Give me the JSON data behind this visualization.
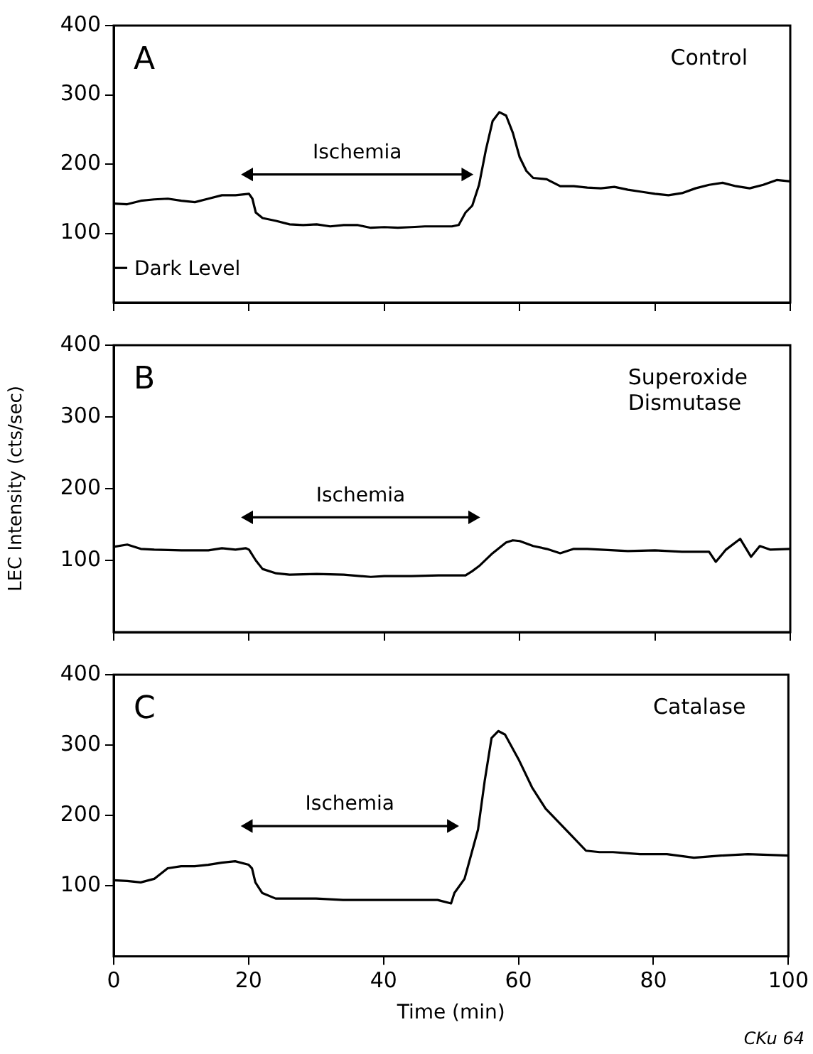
{
  "chart_data": [
    {
      "type": "line",
      "title": "A",
      "subtitle": "Control",
      "tick_labels": "y",
      "series": [
        {
          "color": "#000000",
          "x": [
            0,
            2,
            4,
            6,
            8,
            10,
            12,
            14,
            16,
            18,
            20,
            20.5,
            21,
            22,
            24,
            26,
            28,
            30,
            32,
            34,
            36,
            38,
            40,
            42,
            44,
            46,
            48,
            50,
            51,
            52,
            53,
            54,
            55,
            56,
            57,
            58,
            59,
            60,
            61,
            62,
            64,
            66,
            68,
            70,
            72,
            74,
            76,
            78,
            80,
            82,
            84,
            86,
            88,
            90,
            92,
            94,
            96,
            98,
            100
          ],
          "values": [
            143,
            142,
            147,
            149,
            150,
            147,
            145,
            150,
            155,
            155,
            157,
            150,
            130,
            122,
            118,
            113,
            112,
            113,
            110,
            112,
            112,
            108,
            109,
            108,
            109,
            110,
            110,
            110,
            112,
            130,
            140,
            170,
            220,
            262,
            275,
            270,
            245,
            210,
            190,
            180,
            178,
            168,
            168,
            166,
            165,
            167,
            163,
            160,
            157,
            155,
            158,
            165,
            170,
            173,
            168,
            165,
            170,
            177,
            175
          ]
        },
        {
          "type": "line",
          "color": "#000000",
          "marker": "triangle",
          "x": [
            20,
            52
          ],
          "values": [
            185,
            185
          ]
        },
        {
          "type": "line",
          "color": "#000000",
          "x": [
            0,
            2
          ],
          "values": [
            50,
            50
          ]
        }
      ],
      "xlim": [
        0,
        100
      ],
      "xticks": [
        0,
        20,
        40,
        60,
        80,
        100
      ],
      "ylim": [
        0,
        400
      ],
      "yticks": [
        100,
        200,
        300,
        400
      ],
      "annotations": [
        {
          "text": "Ischemia",
          "x": 36,
          "y": 185
        },
        {
          "text": "Dark Level",
          "x": 2,
          "y": 50
        }
      ]
    },
    {
      "type": "line",
      "title": "B",
      "subtitle": "Superoxide Dismutase",
      "ylabel": "LEC Intensity (cts/sec)",
      "tick_labels": "y",
      "series": [
        {
          "color": "#000000",
          "x": [
            0,
            2,
            4,
            6,
            10,
            14,
            16,
            18,
            19.5,
            20,
            21,
            22,
            24,
            26,
            30,
            34,
            38,
            40,
            44,
            48,
            52,
            53,
            54,
            56,
            58,
            59,
            60,
            62,
            64,
            66,
            68,
            70,
            72,
            76,
            80,
            84,
            88,
            89,
            90.5,
            92.6,
            94.2,
            95.5,
            97,
            100
          ],
          "values": [
            119,
            122,
            116,
            115,
            114,
            114,
            117,
            115,
            117,
            115,
            100,
            88,
            82,
            80,
            81,
            80,
            77,
            78,
            78,
            79,
            79,
            85,
            92,
            110,
            125,
            128,
            127,
            120,
            116,
            110,
            116,
            116,
            115,
            113,
            114,
            112,
            112,
            98,
            115,
            130,
            105,
            120,
            115,
            116
          ]
        },
        {
          "type": "line",
          "color": "#000000",
          "marker": "triangle",
          "x": [
            20,
            53
          ],
          "values": [
            160,
            160
          ]
        }
      ],
      "xlim": [
        0,
        100
      ],
      "xticks": [
        0,
        20,
        40,
        60,
        80,
        100
      ],
      "ylim": [
        0,
        400
      ],
      "yticks": [
        100,
        200,
        300,
        400
      ],
      "annotations": [
        {
          "text": "Ischemia",
          "x": 36.5,
          "y": 160
        }
      ]
    },
    {
      "type": "line",
      "title": "C",
      "subtitle": "Catalase",
      "xlabel": "Time (min)",
      "series": [
        {
          "color": "#000000",
          "x": [
            0,
            2,
            4,
            6,
            8,
            10,
            12,
            14,
            16,
            18,
            20,
            20.5,
            21,
            22,
            24,
            26,
            30,
            34,
            38,
            40,
            44,
            48,
            50,
            50.5,
            52,
            54,
            55,
            56,
            57,
            58,
            60,
            62,
            64,
            66,
            68,
            70,
            72,
            74,
            78,
            82,
            86,
            90,
            94,
            100
          ],
          "values": [
            108,
            107,
            105,
            110,
            125,
            128,
            128,
            130,
            133,
            135,
            130,
            125,
            105,
            90,
            82,
            82,
            82,
            80,
            80,
            80,
            80,
            80,
            75,
            90,
            110,
            180,
            250,
            310,
            320,
            315,
            280,
            240,
            210,
            190,
            170,
            150,
            148,
            148,
            145,
            145,
            140,
            143,
            145,
            143
          ]
        },
        {
          "type": "line",
          "color": "#000000",
          "marker": "triangle",
          "x": [
            20,
            50
          ],
          "values": [
            185,
            185
          ]
        }
      ],
      "xlim": [
        0,
        100
      ],
      "xticks": [
        0,
        20,
        40,
        60,
        80,
        100
      ],
      "ylim": [
        0,
        400
      ],
      "yticks": [
        100,
        200,
        300,
        400
      ],
      "annotations": [
        {
          "text": "Ischemia",
          "x": 35,
          "y": 185
        },
        "CKu 64"
      ]
    }
  ]
}
